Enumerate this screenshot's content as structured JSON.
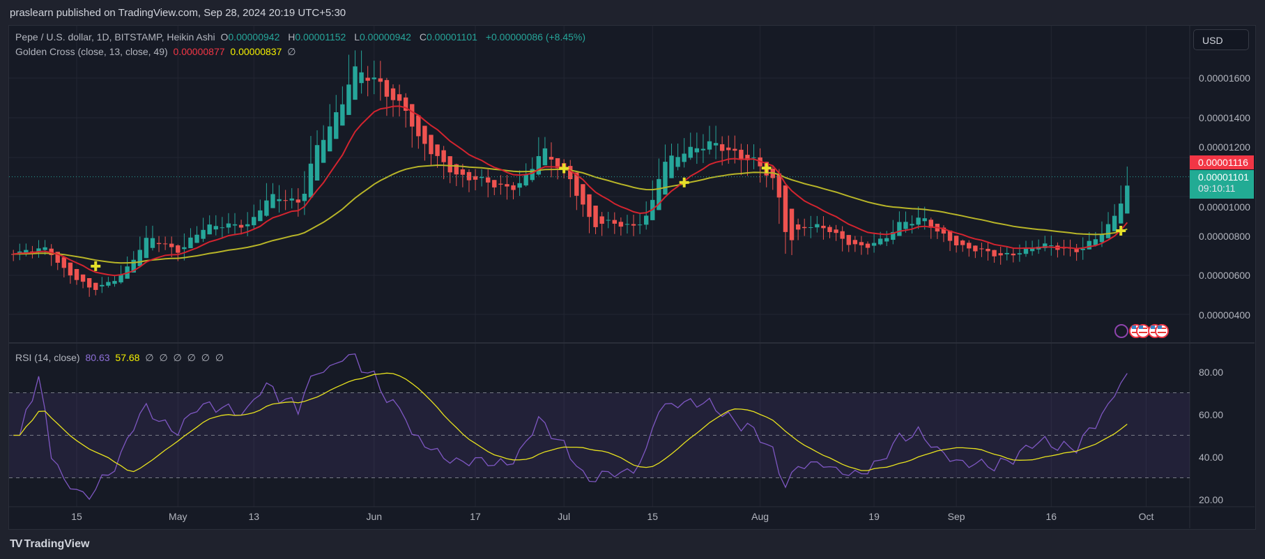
{
  "header": {
    "publisher_text": "praslearn published on TradingView.com, Sep 28, 2024 20:19 UTC+5:30"
  },
  "legend": {
    "symbol": "Pepe / U.S. dollar, 1D, BITSTAMP, Heikin Ashi",
    "o_label": "O",
    "o": "0.00000942",
    "h_label": "H",
    "h": "0.00001152",
    "l_label": "L",
    "l": "0.00000942",
    "c_label": "C",
    "c": "0.00001101",
    "change": "+0.00000086 (+8.45%)",
    "indicator": "Golden Cross (close, 13, close, 49)",
    "ma_fast": "0.00000877",
    "ma_slow": "0.00000837",
    "na": "∅"
  },
  "rsi_legend": {
    "title": "RSI (14, close)",
    "rsi": "80.63",
    "ma": "57.68",
    "na": [
      "∅",
      "∅",
      "∅",
      "∅",
      "∅",
      "∅"
    ]
  },
  "currency": "USD",
  "price_axis": [
    "0.00001600",
    "0.00001400",
    "0.00001200",
    "0.00001000",
    "0.00000800",
    "0.00000600",
    "0.00000400"
  ],
  "rsi_axis": [
    "80.00",
    "60.00",
    "40.00",
    "20.00"
  ],
  "current_price": {
    "ask": "0.00001116",
    "last": "0.00001101",
    "countdown": "09:10:11"
  },
  "time_axis": [
    {
      "label": "15",
      "date": "04-15"
    },
    {
      "label": "May",
      "date": "05-01"
    },
    {
      "label": "13",
      "date": "05-13"
    },
    {
      "label": "Jun",
      "date": "06-01"
    },
    {
      "label": "17",
      "date": "06-17"
    },
    {
      "label": "Jul",
      "date": "07-01"
    },
    {
      "label": "15",
      "date": "07-15"
    },
    {
      "label": "Aug",
      "date": "08-01"
    },
    {
      "label": "19",
      "date": "08-19"
    },
    {
      "label": "Sep",
      "date": "09-01"
    },
    {
      "label": "16",
      "date": "09-16"
    },
    {
      "label": "Oct",
      "date": "10-01"
    }
  ],
  "colors": {
    "up": "#26a69a",
    "down": "#ef5350",
    "ma_fast": "#d3242f",
    "ma_slow": "#b8b528",
    "rsi": "#7e57c2",
    "rsi_ma": "#e8e21e"
  },
  "price_series_units": "1e-8 USD",
  "price_keyframes": [
    [
      "04-05",
      710
    ],
    [
      "04-10",
      740
    ],
    [
      "04-13",
      620
    ],
    [
      "04-17",
      520
    ],
    [
      "04-22",
      620
    ],
    [
      "04-26",
      790
    ],
    [
      "05-01",
      730
    ],
    [
      "05-04",
      820
    ],
    [
      "05-08",
      870
    ],
    [
      "05-12",
      850
    ],
    [
      "05-15",
      1000
    ],
    [
      "05-18",
      1000
    ],
    [
      "05-20",
      960
    ],
    [
      "05-22",
      1200
    ],
    [
      "05-26",
      1450
    ],
    [
      "05-28",
      1650
    ],
    [
      "05-31",
      1580
    ],
    [
      "06-03",
      1520
    ],
    [
      "06-06",
      1450
    ],
    [
      "06-07",
      1300
    ],
    [
      "06-10",
      1200
    ],
    [
      "06-14",
      1120
    ],
    [
      "06-17",
      1080
    ],
    [
      "06-20",
      1050
    ],
    [
      "06-24",
      1080
    ],
    [
      "06-27",
      1220
    ],
    [
      "07-01",
      1130
    ],
    [
      "07-03",
      1000
    ],
    [
      "07-05",
      840
    ],
    [
      "07-08",
      870
    ],
    [
      "07-12",
      860
    ],
    [
      "07-14",
      900
    ],
    [
      "07-16",
      1150
    ],
    [
      "07-19",
      1240
    ],
    [
      "07-22",
      1250
    ],
    [
      "07-26",
      1240
    ],
    [
      "07-30",
      1200
    ],
    [
      "08-03",
      1050
    ],
    [
      "08-05",
      760
    ],
    [
      "08-07",
      860
    ],
    [
      "08-10",
      840
    ],
    [
      "08-14",
      780
    ],
    [
      "08-17",
      750
    ],
    [
      "08-20",
      770
    ],
    [
      "08-23",
      880
    ],
    [
      "08-26",
      900
    ],
    [
      "08-29",
      800
    ],
    [
      "09-01",
      760
    ],
    [
      "09-04",
      740
    ],
    [
      "09-07",
      690
    ],
    [
      "09-10",
      720
    ],
    [
      "09-13",
      760
    ],
    [
      "09-17",
      730
    ],
    [
      "09-20",
      740
    ],
    [
      "09-23",
      800
    ],
    [
      "09-25",
      850
    ],
    [
      "09-26",
      920
    ],
    [
      "09-27",
      1010
    ],
    [
      "09-28",
      1101
    ]
  ],
  "cross_markers": [
    "04-18",
    "07-01",
    "07-20",
    "08-02",
    "09-27"
  ],
  "branding": "TradingView"
}
